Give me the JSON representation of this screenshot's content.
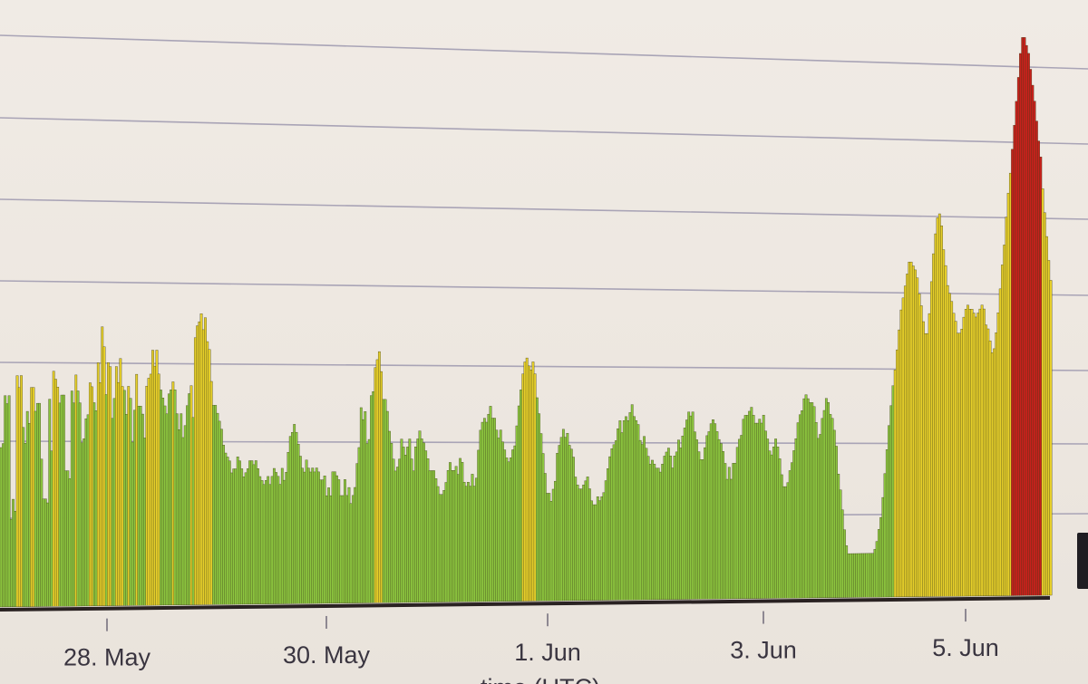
{
  "chart_data": {
    "type": "bar",
    "title": "",
    "xlabel": "time (UTC)",
    "ylabel": "",
    "x_tick_labels": [
      "28. May",
      "30. May",
      "1. Jun",
      "3. Jun",
      "5. Jun"
    ],
    "x_range_days": [
      "27. May",
      "5. Jun"
    ],
    "y_tick_labels": [],
    "grid": true,
    "legend": "none",
    "colors": {
      "low": "#8cc63f",
      "medium": "#e6cf2a",
      "high": "#c8211c",
      "outline": "#3c3a18"
    },
    "values": [
      40,
      41,
      53,
      51,
      53,
      22,
      27,
      24,
      58,
      55,
      58,
      45,
      41,
      49,
      46,
      55,
      55,
      49,
      51,
      51,
      37,
      27,
      27,
      26,
      52,
      39,
      59,
      57,
      55,
      51,
      53,
      53,
      34,
      34,
      32,
      54,
      51,
      58,
      54,
      51,
      41,
      42,
      47,
      48,
      56,
      55,
      51,
      49,
      61,
      56,
      70,
      65,
      53,
      61,
      60,
      47,
      52,
      60,
      56,
      62,
      55,
      54,
      48,
      55,
      52,
      41,
      49,
      58,
      50,
      50,
      48,
      42,
      55,
      57,
      58,
      64,
      60,
      64,
      58,
      54,
      52,
      50,
      48,
      53,
      54,
      56,
      54,
      48,
      44,
      48,
      42,
      45,
      50,
      53,
      55,
      47,
      67,
      70,
      71,
      73,
      69,
      72,
      66,
      64,
      56,
      50,
      50,
      48,
      46,
      44,
      40,
      38,
      37,
      36,
      33,
      34,
      34,
      37,
      36,
      34,
      32,
      33,
      34,
      36,
      36,
      35,
      36,
      34,
      32,
      31,
      30,
      31,
      32,
      30,
      32,
      34,
      33,
      32,
      30,
      34,
      31,
      33,
      38,
      42,
      43,
      45,
      43,
      40,
      37,
      34,
      33,
      36,
      34,
      33,
      34,
      33,
      34,
      33,
      31,
      31,
      32,
      27,
      29,
      27,
      33,
      33,
      32,
      31,
      27,
      27,
      31,
      27,
      29,
      25,
      27,
      29,
      35,
      39,
      49,
      46,
      48,
      40,
      41,
      52,
      53,
      59,
      61,
      63,
      58,
      51,
      51,
      48,
      43,
      40,
      36,
      33,
      34,
      36,
      41,
      39,
      37,
      39,
      41,
      36,
      33,
      39,
      41,
      43,
      41,
      40,
      38,
      36,
      33,
      33,
      33,
      31,
      29,
      27,
      27,
      28,
      30,
      33,
      35,
      33,
      33,
      34,
      32,
      36,
      35,
      30,
      29,
      30,
      29,
      32,
      29,
      31,
      38,
      43,
      45,
      46,
      45,
      47,
      49,
      46,
      46,
      43,
      41,
      43,
      40,
      38,
      36,
      35,
      36,
      38,
      39,
      44,
      49,
      53,
      57,
      60,
      61,
      59,
      58,
      60,
      57,
      51,
      47,
      42,
      37,
      32,
      27,
      27,
      25,
      28,
      30,
      37,
      39,
      41,
      43,
      41,
      42,
      39,
      38,
      36,
      31,
      29,
      28,
      28,
      29,
      30,
      31,
      28,
      25,
      24,
      24,
      26,
      25,
      26,
      27,
      30,
      33,
      36,
      38,
      39,
      40,
      43,
      45,
      42,
      45,
      46,
      45,
      47,
      49,
      46,
      45,
      44,
      40,
      39,
      41,
      38,
      36,
      34,
      35,
      34,
      33,
      33,
      32,
      34,
      36,
      37,
      38,
      36,
      33,
      36,
      37,
      40,
      38,
      41,
      43,
      45,
      47,
      46,
      47,
      42,
      40,
      37,
      35,
      35,
      38,
      41,
      42,
      44,
      45,
      44,
      42,
      40,
      39,
      37,
      34,
      30,
      33,
      30,
      34,
      34,
      38,
      40,
      41,
      45,
      46,
      46,
      47,
      48,
      46,
      44,
      44,
      45,
      44,
      46,
      42,
      40,
      37,
      36,
      38,
      40,
      38,
      35,
      31,
      28,
      28,
      29,
      32,
      34,
      37,
      40,
      44,
      46,
      47,
      50,
      51,
      50,
      49,
      49,
      48,
      44,
      40,
      41,
      45,
      47,
      50,
      49,
      46,
      45,
      42,
      38,
      31,
      27,
      22,
      17,
      13,
      11,
      11,
      11,
      11,
      11,
      11,
      11,
      11,
      11,
      11,
      11,
      11,
      11,
      12,
      14,
      17,
      20,
      25,
      31,
      37,
      43,
      48,
      53,
      57,
      62,
      67,
      72,
      75,
      78,
      81,
      84,
      84,
      83,
      82,
      80,
      76,
      73,
      69,
      66,
      66,
      71,
      79,
      86,
      91,
      95,
      96,
      93,
      87,
      83,
      78,
      76,
      74,
      71,
      69,
      66,
      66,
      67,
      70,
      72,
      73,
      72,
      72,
      71,
      70,
      71,
      72,
      73,
      72,
      68,
      67,
      64,
      61,
      62,
      66,
      71,
      77,
      83,
      88,
      95,
      101,
      106,
      112,
      118,
      124,
      130,
      136,
      140,
      140,
      138,
      136,
      132,
      128,
      124,
      119,
      114,
      110,
      102,
      96,
      90,
      84,
      79
    ]
  }
}
